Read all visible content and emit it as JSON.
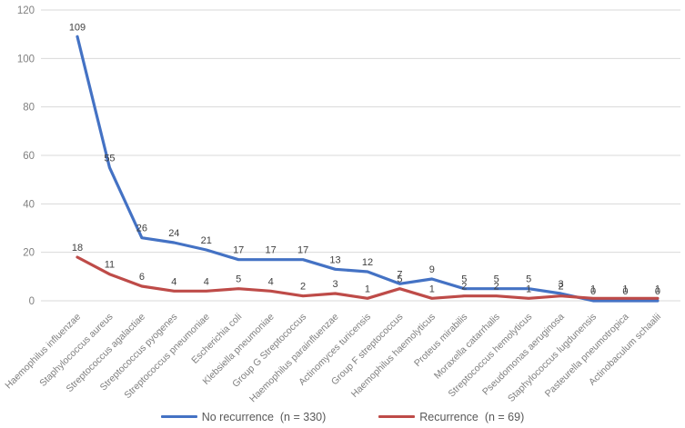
{
  "chart_data": {
    "type": "line",
    "title": "",
    "xlabel": "",
    "ylabel": "",
    "categories": [
      "Haemophilus influenzae",
      "Staphylococcus aureus",
      "Streptococcus agalactiae",
      "Streptococcus pyogenes",
      "Streptococcus pneumoniae",
      "Escherichia coli",
      "Klebsiella pneumoniae",
      "Group G Streptococcus",
      "Haemophilus parainfluenzae",
      "Actinomyces turicensis",
      "Group F streptococcus",
      "Haemophilus haemolyticus",
      "Proteus mirabilis",
      "Moraxella catarrhalis",
      "Streptococcus hemolyticus",
      "Pseudomonas aeruginosa",
      "Staphylococcus lugdunensis",
      "Pasteurella pneumotropica",
      "Actinobaculum schaalii"
    ],
    "series": [
      {
        "name": "No recurrence  (n = 330)",
        "color": "#4472C4",
        "values": [
          109,
          55,
          26,
          24,
          21,
          17,
          17,
          17,
          13,
          12,
          7,
          9,
          5,
          5,
          5,
          3,
          0,
          0,
          0
        ]
      },
      {
        "name": "Recurrence  (n = 69)",
        "color": "#BE4B48",
        "values": [
          18,
          11,
          6,
          4,
          4,
          5,
          4,
          2,
          3,
          1,
          5,
          1,
          2,
          2,
          1,
          2,
          1,
          1,
          1
        ]
      }
    ],
    "ylim": [
      0,
      120
    ],
    "yticks": [
      0,
      20,
      40,
      60,
      80,
      100,
      120
    ],
    "grid": true,
    "legend_position": "bottom"
  },
  "colors": {
    "gridline": "#D9D9D9",
    "tick_text": "#808080",
    "category_text": "#7F7F7F",
    "data_label_text": "#404040",
    "legend_text": "#595959",
    "background": "#FFFFFF"
  }
}
